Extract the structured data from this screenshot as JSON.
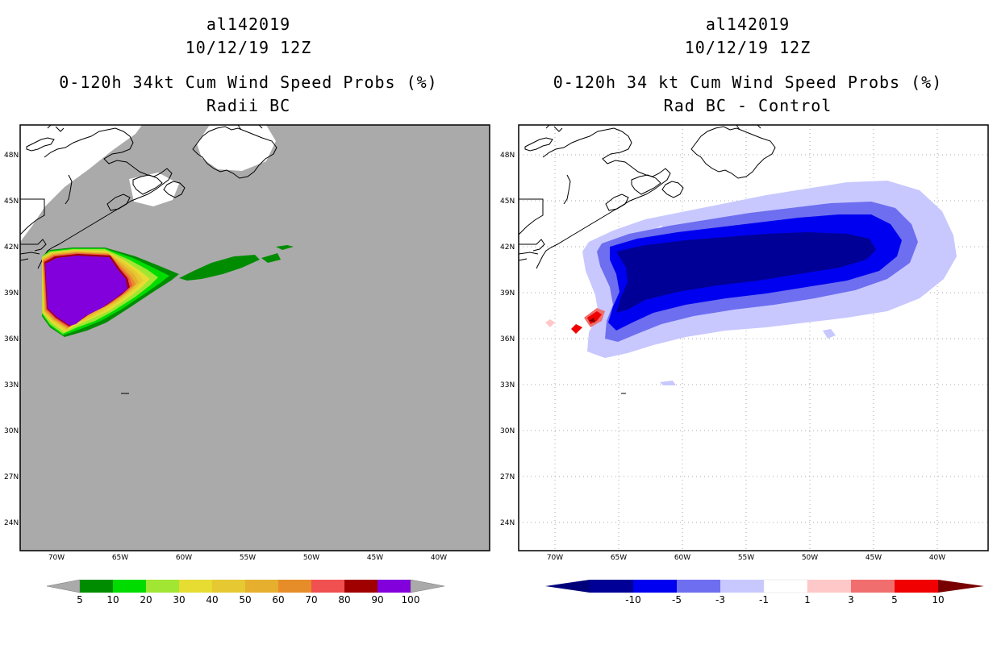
{
  "left_panel": {
    "storm_id": "al142019",
    "init_time": "10/12/19 12Z",
    "title": "0-120h 34kt Cum Wind Speed Probs (%)",
    "subtitle": "Radii BC",
    "colorbar_labels": [
      "5",
      "10",
      "20",
      "30",
      "40",
      "50",
      "60",
      "70",
      "80",
      "90",
      "100"
    ],
    "colorbar_colors": [
      "#008c00",
      "#00dc00",
      "#a0e632",
      "#e6dc32",
      "#e6c832",
      "#e6af2d",
      "#e68c28",
      "#f05050",
      "#a00000",
      "#8200dc"
    ],
    "background_color": "#aaaaaa"
  },
  "right_panel": {
    "storm_id": "al142019",
    "init_time": "10/12/19 12Z",
    "title": "0-120h 34 kt Cum Wind Speed Probs (%)",
    "subtitle": "Rad BC - Control",
    "colorbar_labels": [
      "-10",
      "-5",
      "-3",
      "-1",
      "1",
      "3",
      "5",
      "10"
    ],
    "colorbar_colors": [
      "#000096",
      "#0000f0",
      "#6e6ef0",
      "#c8c8ff",
      "#ffffff",
      "#ffc8c8",
      "#f06e6e",
      "#f00000"
    ],
    "arrow_low_color": "#00007a",
    "arrow_high_color": "#780000"
  },
  "axes": {
    "lat_labels": [
      "48N",
      "45N",
      "42N",
      "39N",
      "36N",
      "33N",
      "30N",
      "27N",
      "24N"
    ],
    "lon_labels": [
      "70W",
      "65W",
      "60W",
      "55W",
      "50W",
      "45W",
      "40W"
    ]
  }
}
